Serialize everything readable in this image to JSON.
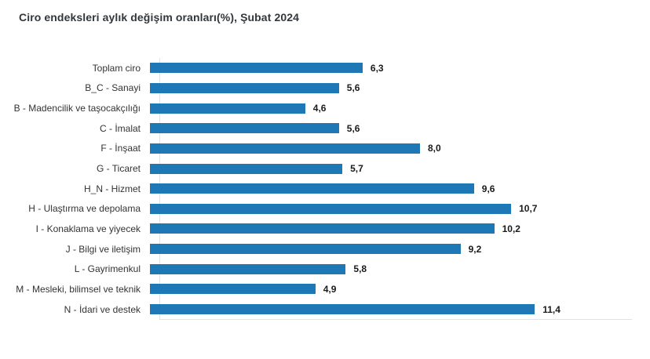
{
  "page": {
    "background": "#ffffff"
  },
  "chart_data": {
    "type": "bar",
    "orientation": "horizontal",
    "title": "Ciro endeksleri aylık değişim oranları(%), Şubat 2024",
    "categories": [
      "Toplam ciro",
      "B_C - Sanayi",
      "B - Madencilik ve taşocakçılığı",
      "C - İmalat",
      "F - İnşaat",
      "G - Ticaret",
      "H_N - Hizmet",
      "H - Ulaştırma ve depolama",
      "I - Konaklama ve yiyecek",
      "J - Bilgi ve iletişim",
      "L - Gayrimenkul",
      "M - Mesleki, bilimsel ve teknik",
      "N - İdari ve destek"
    ],
    "values": [
      6.3,
      5.6,
      4.6,
      5.6,
      8.0,
      5.7,
      9.6,
      10.7,
      10.2,
      9.2,
      5.8,
      4.9,
      11.4
    ],
    "value_labels": [
      "6,3",
      "5,6",
      "4,6",
      "5,6",
      "8,0",
      "5,7",
      "9,6",
      "10,7",
      "10,2",
      "9,2",
      "5,8",
      "4,9",
      "11,4"
    ],
    "xlabel": "",
    "ylabel": "",
    "xlim": [
      0,
      14
    ],
    "x_ticks": [
      0,
      2,
      4,
      6,
      8,
      10,
      12,
      14
    ],
    "grid": "off",
    "legend": "none",
    "colors": {
      "bar": "#1e78b5",
      "axis_line": "#e2e2e2",
      "title_text": "#32373c",
      "category_text": "#333333",
      "value_text": "#1a1a1a",
      "tick_text": "#333333",
      "background": "#ffffff"
    }
  }
}
